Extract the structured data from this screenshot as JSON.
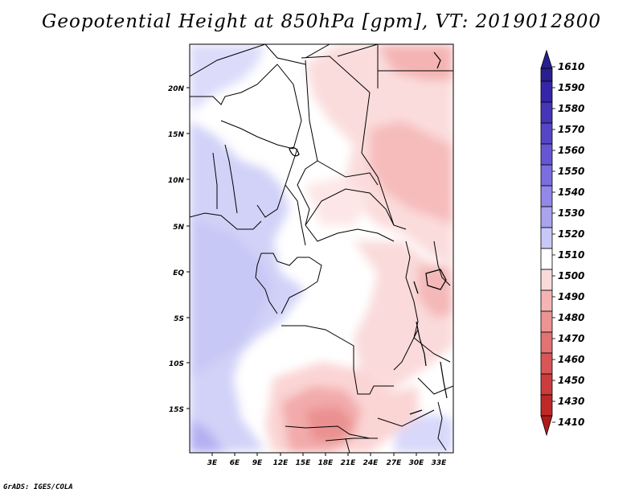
{
  "title": "Geopotential Height at 850hPa [gpm], VT: 2019012800",
  "footer": "GrADS: IGES/COLA",
  "map": {
    "lat_labels": [
      "20N",
      "15N",
      "10N",
      "5N",
      "EQ",
      "5S",
      "10S",
      "15S"
    ],
    "lon_labels": [
      "3E",
      "6E",
      "9E",
      "12E",
      "15E",
      "18E",
      "21E",
      "24E",
      "27E",
      "30E",
      "33E"
    ]
  },
  "colorbar": {
    "levels": [
      "1610",
      "1590",
      "1580",
      "1570",
      "1560",
      "1550",
      "1540",
      "1530",
      "1520",
      "1510",
      "1500",
      "1490",
      "1480",
      "1470",
      "1460",
      "1450",
      "1430",
      "1410"
    ],
    "colors": [
      "#2a1f8f",
      "#3526a8",
      "#4536b8",
      "#5546c8",
      "#6656d6",
      "#7a6ee0",
      "#9288e8",
      "#aaa4ef",
      "#c8c8f8",
      "#ffffff",
      "#fbdada",
      "#f4b4b4",
      "#ec9494",
      "#e37272",
      "#d85656",
      "#cd3c3c",
      "#c02828",
      "#b01a1a"
    ]
  }
}
